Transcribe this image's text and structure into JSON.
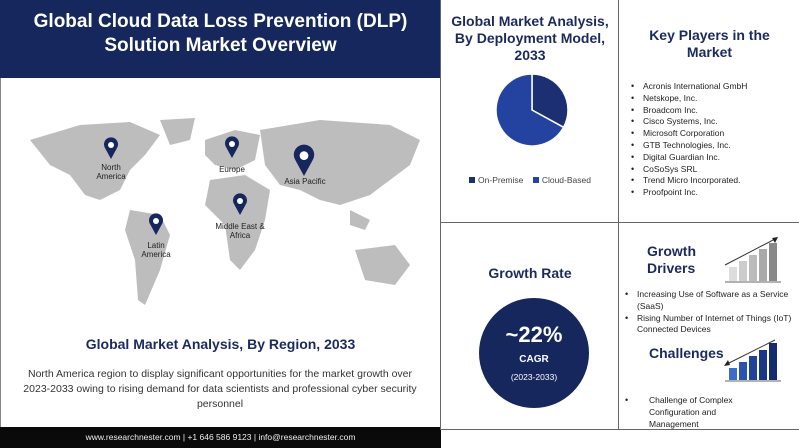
{
  "title": "Global Cloud Data Loss Prevention (DLP) Solution Market Overview",
  "map": {
    "pins": [
      {
        "label": "North America"
      },
      {
        "label": "Europe"
      },
      {
        "label": "Asia Pacific"
      },
      {
        "label": "Latin America"
      },
      {
        "label": "Middle East & Africa"
      }
    ],
    "accent": "#16275e"
  },
  "region": {
    "title": "Global Market Analysis, By Region, 2033",
    "text": "North America region to display significant opportunities for the market growth over 2023-2033  owing to rising demand for data scientists and professional cyber security personnel"
  },
  "footer": "www.researchnester.com  |  +1 646 586 9123  |  info@researchnester.com",
  "deployment": {
    "title": "Global Market Analysis, By Deployment Model, 2033"
  },
  "chart_data": {
    "type": "pie",
    "title": "Global Market Analysis, By Deployment Model, 2033",
    "categories": [
      "On-Premise",
      "Cloud-Based"
    ],
    "values": [
      33,
      67
    ],
    "colors": [
      "#1b2f72",
      "#2443a0"
    ],
    "legend": "bottom"
  },
  "players": {
    "title": "Key Players in the Market",
    "items": [
      "Acronis International  GmbH",
      "Netskope, Inc.",
      "Broadcom  Inc.",
      "Cisco Systems, Inc.",
      "Microsoft Corporation",
      "GTB Technologies,  Inc.",
      "Digital Guardian  Inc.",
      "CoSoSys SRL",
      "Trend Micro Incorporated.",
      "Proofpoint Inc."
    ]
  },
  "growth": {
    "title": "Growth Rate",
    "value": "~22%",
    "label": "CAGR",
    "period": "(2023-2033)"
  },
  "drivers": {
    "title": "Growth Drivers",
    "items": [
      "Increasing Use of Software as a Service (SaaS)",
      "Rising Number of Internet of Things (IoT) Connected Devices"
    ]
  },
  "challenges": {
    "title": "Challenges",
    "items": [
      "Challenge of Complex Configuration and Management"
    ]
  }
}
